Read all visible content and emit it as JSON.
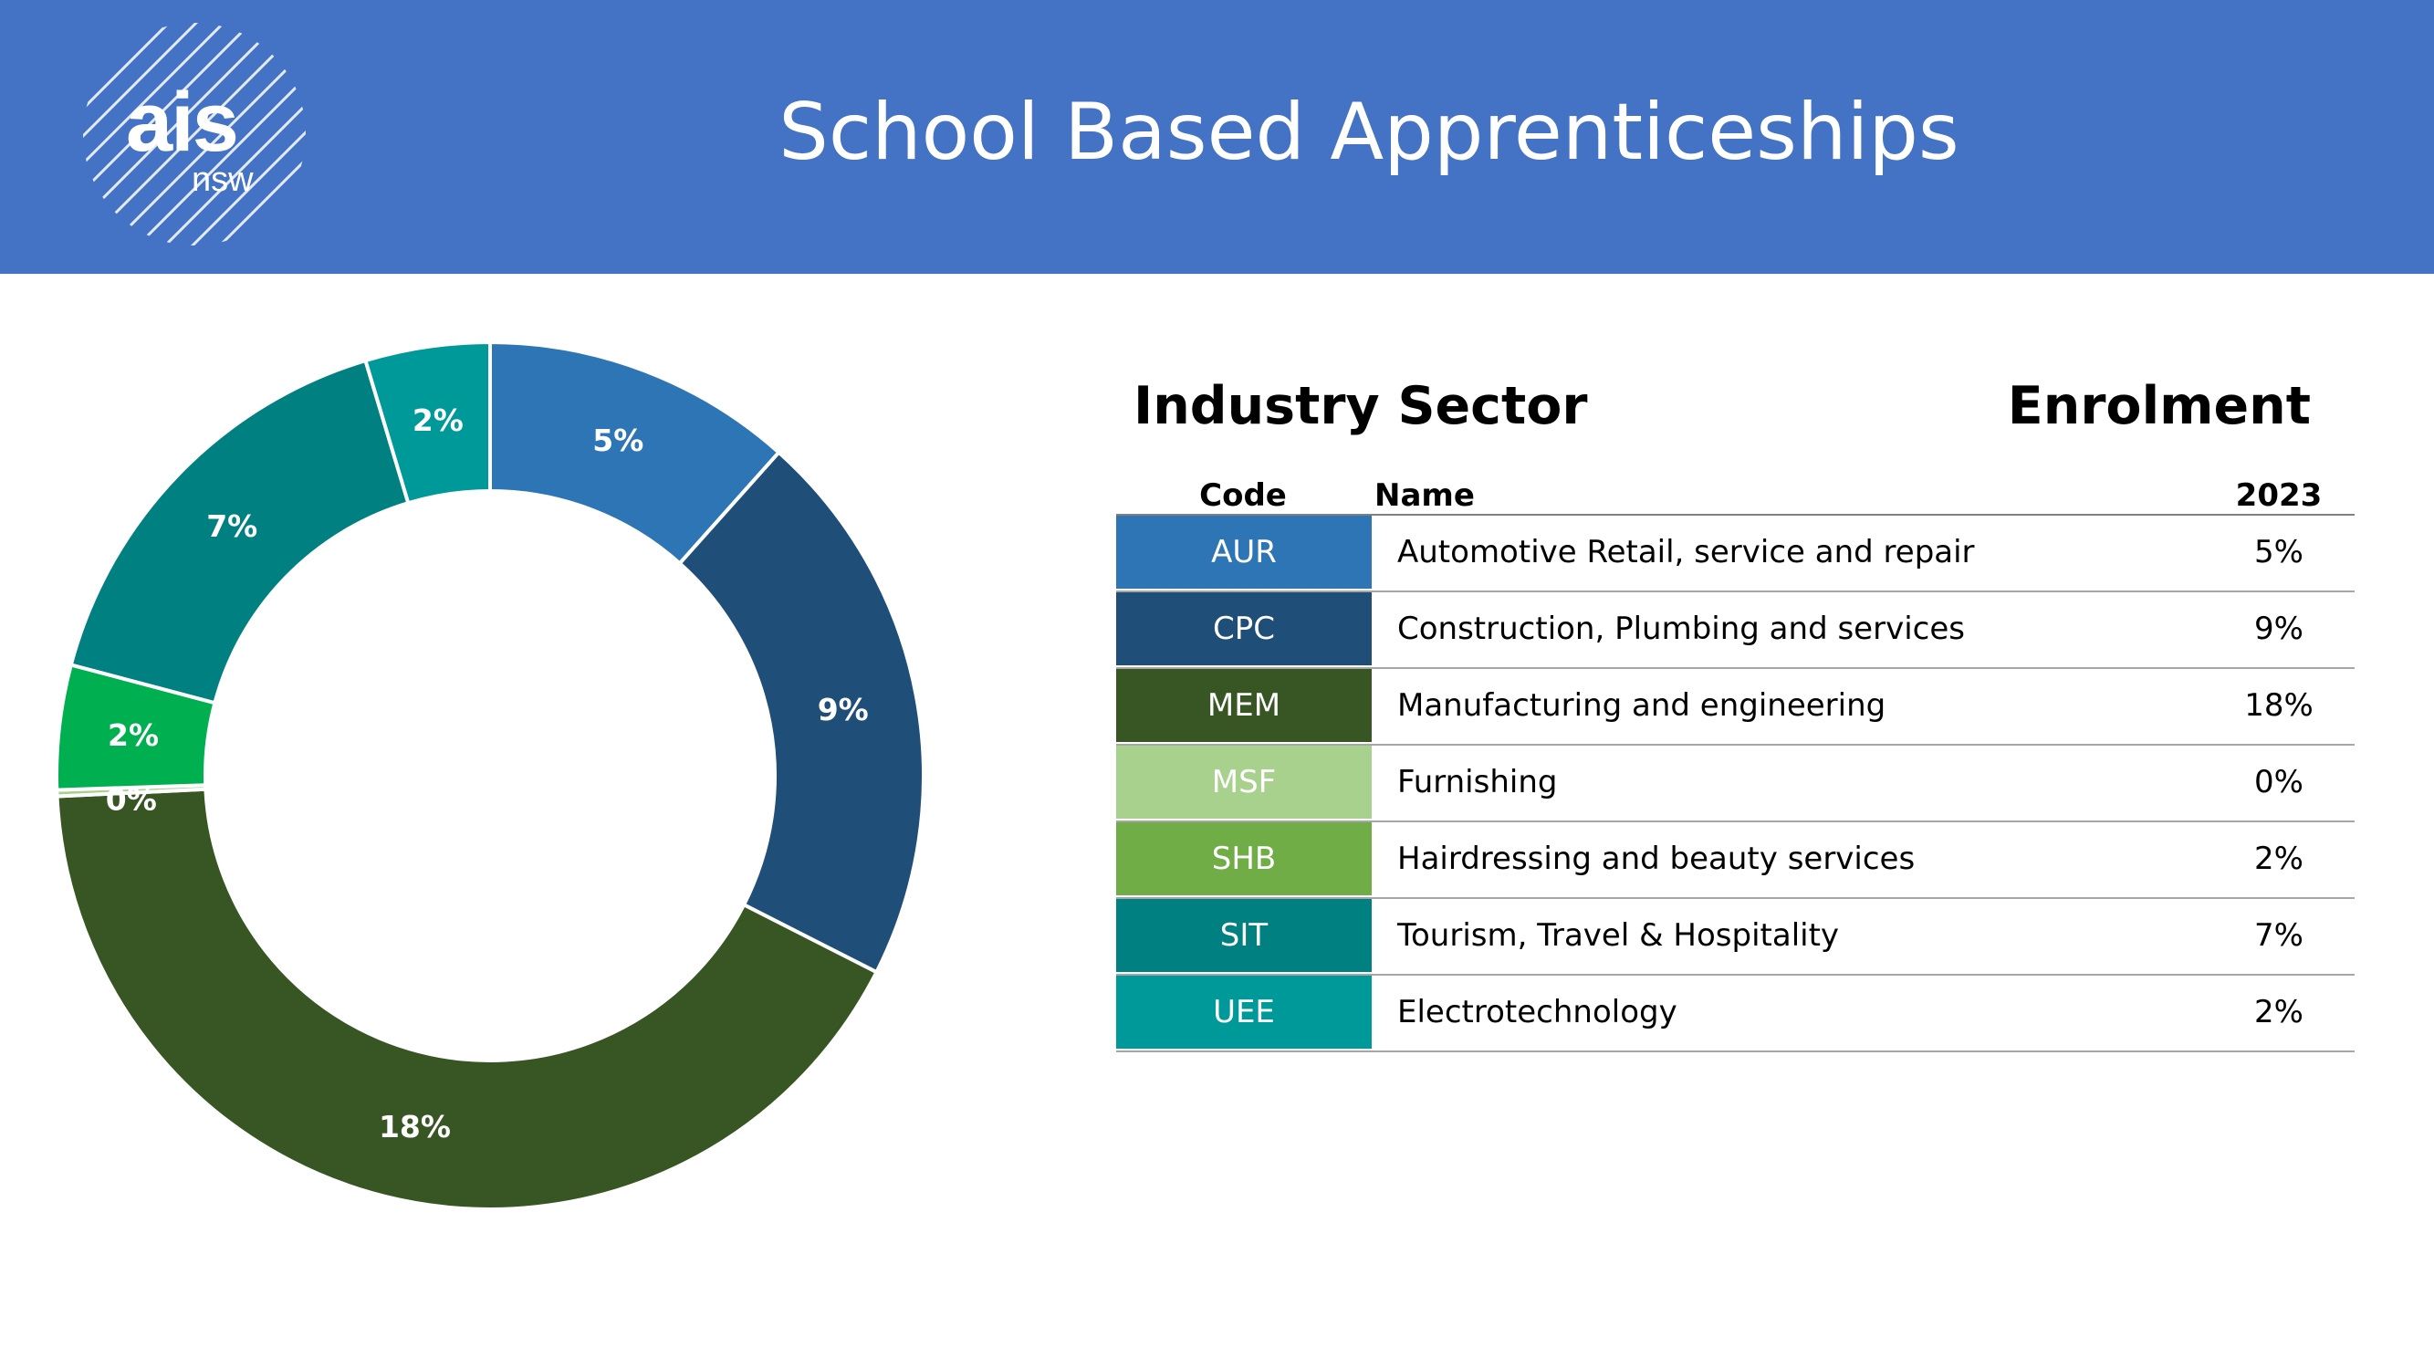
{
  "header": {
    "title": "School Based Apprenticeships"
  },
  "logo": {
    "text_main": "ais",
    "text_sub": "nsw"
  },
  "table": {
    "sector_heading": "Industry Sector",
    "enrolment_heading": "Enrolment",
    "columns": {
      "code": "Code",
      "name": "Name",
      "year": "2023"
    },
    "rows": [
      {
        "code": "AUR",
        "name": "Automotive Retail, service and repair",
        "value": "5%",
        "color": "#2e75b6"
      },
      {
        "code": "CPC",
        "name": "Construction, Plumbing and services",
        "value": "9%",
        "color": "#1f4e79"
      },
      {
        "code": "MEM",
        "name": "Manufacturing and engineering",
        "value": "18%",
        "color": "#375623"
      },
      {
        "code": "MSF",
        "name": "Furnishing",
        "value": "0%",
        "color": "#a9d18e"
      },
      {
        "code": "SHB",
        "name": "Hairdressing and beauty services",
        "value": "2%",
        "color": "#70ad47"
      },
      {
        "code": "SIT",
        "name": "Tourism, Travel & Hospitality",
        "value": "7%",
        "color": "#008080"
      },
      {
        "code": "UEE",
        "name": "Electrotechnology",
        "value": "2%",
        "color": "#009999"
      }
    ]
  },
  "chart_data": {
    "type": "pie",
    "donut": true,
    "title": "",
    "categories": [
      "AUR",
      "CPC",
      "MEM",
      "MSF",
      "SHB",
      "SIT",
      "UEE"
    ],
    "values": [
      5,
      9,
      18,
      0.1,
      2,
      7,
      2
    ],
    "labels": [
      "5%",
      "9%",
      "18%",
      "0%",
      "2%",
      "7%",
      "2%"
    ],
    "colors": [
      "#2e75b6",
      "#1f4e79",
      "#375623",
      "#a9d18e",
      "#00b050",
      "#008080",
      "#009999"
    ],
    "legend": "none"
  }
}
